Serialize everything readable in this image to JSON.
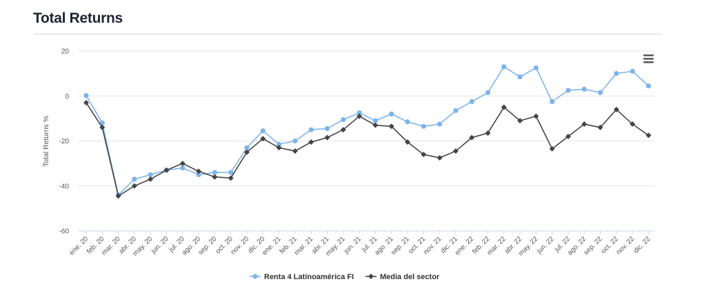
{
  "page": {
    "title": "Total Returns"
  },
  "chart_data": {
    "type": "line",
    "title": "",
    "xlabel": "",
    "ylabel": "Total Returns %",
    "ylim": [
      -60,
      20
    ],
    "yticks": [
      20,
      0,
      -20,
      -40,
      -60
    ],
    "grid": true,
    "legend_position": "bottom-center",
    "categories": [
      "ene. 20",
      "feb. 20",
      "mar. 20",
      "abr. 20",
      "may. 20",
      "jun. 20",
      "jul. 20",
      "ago. 20",
      "sep. 20",
      "oct. 20",
      "nov. 20",
      "dic. 20",
      "ene. 21",
      "feb. 21",
      "mar. 21",
      "abr. 21",
      "may. 21",
      "jun. 21",
      "jul. 21",
      "ago. 21",
      "sep. 21",
      "oct. 21",
      "nov. 21",
      "dic. 21",
      "ene. 22",
      "feb. 22",
      "mar. 22",
      "abr. 22",
      "may. 22",
      "jun. 22",
      "jul. 22",
      "ago. 22",
      "sep. 22",
      "oct. 22",
      "nov. 22",
      "dic. 22"
    ],
    "series": [
      {
        "name": "Renta 4 Latinoamérica FI",
        "color": "#7cb5ec",
        "marker": "circle",
        "values": [
          0.2,
          -12,
          -44,
          -37,
          -35,
          -33,
          -32,
          -35,
          -34,
          -34,
          -23,
          -15.5,
          -21.5,
          -20,
          -15,
          -14.5,
          -10.5,
          -7.5,
          -11,
          -8,
          -11.5,
          -13.5,
          -12.5,
          -6.5,
          -2.5,
          1.5,
          13,
          8.5,
          12.5,
          -2.5,
          2.5,
          3,
          1.5,
          10,
          11,
          4.5
        ]
      },
      {
        "name": "Media del sector",
        "color": "#434348",
        "marker": "diamond",
        "values": [
          -3,
          -14,
          -44.5,
          -40,
          -37,
          -33,
          -30,
          -33.5,
          -36,
          -36.5,
          -25,
          -19,
          -23,
          -24.5,
          -20.5,
          -18.5,
          -15,
          -9,
          -13,
          -13.5,
          -20.5,
          -26,
          -27.5,
          -24.5,
          -18.5,
          -16.5,
          -5,
          -11,
          -9,
          -23.5,
          -18,
          -12.5,
          -14,
          -6,
          -12.5,
          -17.5
        ]
      }
    ]
  },
  "menu": {
    "icon": "hamburger-menu-icon"
  }
}
